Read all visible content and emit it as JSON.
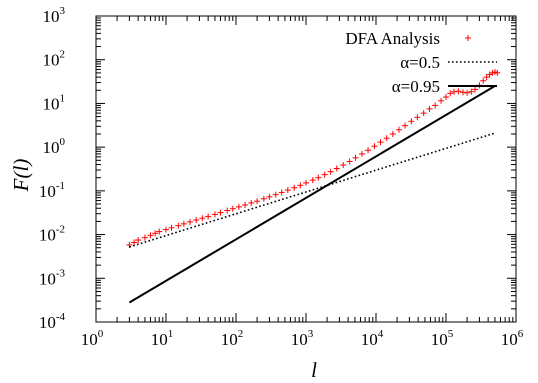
{
  "chart_data": {
    "type": "scatter",
    "title": "",
    "xlabel": "l",
    "ylabel": "F(l)",
    "x_scale": "log",
    "y_scale": "log",
    "xlim": [
      1,
      1000000
    ],
    "ylim": [
      0.0001,
      1000
    ],
    "grid": false,
    "legend_position": "top-right",
    "x_ticks": [
      {
        "base": "10",
        "exp": "0",
        "value": 1
      },
      {
        "base": "10",
        "exp": "1",
        "value": 10
      },
      {
        "base": "10",
        "exp": "2",
        "value": 100
      },
      {
        "base": "10",
        "exp": "3",
        "value": 1000
      },
      {
        "base": "10",
        "exp": "4",
        "value": 10000
      },
      {
        "base": "10",
        "exp": "5",
        "value": 100000
      },
      {
        "base": "10",
        "exp": "6",
        "value": 1000000
      }
    ],
    "y_ticks": [
      {
        "base": "10",
        "exp": "-4",
        "value": 0.0001
      },
      {
        "base": "10",
        "exp": "-3",
        "value": 0.001
      },
      {
        "base": "10",
        "exp": "-2",
        "value": 0.01
      },
      {
        "base": "10",
        "exp": "-1",
        "value": 0.1
      },
      {
        "base": "10",
        "exp": "0",
        "value": 1
      },
      {
        "base": "10",
        "exp": "1",
        "value": 10
      },
      {
        "base": "10",
        "exp": "2",
        "value": 100
      },
      {
        "base": "10",
        "exp": "3",
        "value": 1000
      }
    ],
    "series": [
      {
        "name": "DFA Analysis",
        "kind": "points",
        "marker": "plus",
        "color": "#ff0000",
        "points": [
          [
            3,
            0.0058
          ],
          [
            3.5,
            0.0066
          ],
          [
            4,
            0.0075
          ],
          [
            5,
            0.0085
          ],
          [
            6,
            0.0096
          ],
          [
            7,
            0.0107
          ],
          [
            8,
            0.0117
          ],
          [
            10,
            0.013
          ],
          [
            12,
            0.0143
          ],
          [
            15,
            0.016
          ],
          [
            18,
            0.0176
          ],
          [
            22,
            0.0195
          ],
          [
            27,
            0.0215
          ],
          [
            33,
            0.0237
          ],
          [
            40,
            0.026
          ],
          [
            50,
            0.0289
          ],
          [
            60,
            0.0318
          ],
          [
            75,
            0.0355
          ],
          [
            90,
            0.039
          ],
          [
            110,
            0.043
          ],
          [
            135,
            0.0475
          ],
          [
            165,
            0.053
          ],
          [
            200,
            0.058
          ],
          [
            250,
            0.066
          ],
          [
            300,
            0.073
          ],
          [
            370,
            0.082
          ],
          [
            450,
            0.092
          ],
          [
            550,
            0.104
          ],
          [
            680,
            0.118
          ],
          [
            830,
            0.134
          ],
          [
            1000,
            0.152
          ],
          [
            1250,
            0.176
          ],
          [
            1500,
            0.2
          ],
          [
            1850,
            0.235
          ],
          [
            2250,
            0.275
          ],
          [
            2750,
            0.325
          ],
          [
            3400,
            0.39
          ],
          [
            4200,
            0.47
          ],
          [
            5100,
            0.57
          ],
          [
            6300,
            0.7
          ],
          [
            7700,
            0.85
          ],
          [
            9500,
            1.05
          ],
          [
            11600,
            1.3
          ],
          [
            14200,
            1.6
          ],
          [
            17400,
            2.0
          ],
          [
            21300,
            2.5
          ],
          [
            26000,
            3.1
          ],
          [
            32000,
            3.9
          ],
          [
            39000,
            4.8
          ],
          [
            48000,
            6.0
          ],
          [
            58000,
            7.5
          ],
          [
            70000,
            9.0
          ],
          [
            85000,
            11.5
          ],
          [
            100000,
            14
          ],
          [
            115000,
            17
          ],
          [
            130000,
            18.5
          ],
          [
            150000,
            19
          ],
          [
            175000,
            18
          ],
          [
            200000,
            17.5
          ],
          [
            230000,
            18.5
          ],
          [
            260000,
            21
          ],
          [
            300000,
            26
          ],
          [
            340000,
            33
          ],
          [
            380000,
            40
          ],
          [
            420000,
            46
          ],
          [
            460000,
            50
          ],
          [
            500000,
            52
          ],
          [
            540000,
            50
          ]
        ]
      },
      {
        "name": "α=0.5",
        "kind": "line",
        "style": "dotted",
        "color": "#000000",
        "points": [
          [
            3,
            0.0052
          ],
          [
            500000,
            2.1
          ]
        ]
      },
      {
        "name": "α=0.95",
        "kind": "line",
        "style": "solid",
        "color": "#000000",
        "points": [
          [
            3,
            0.00028
          ],
          [
            500000,
            25
          ]
        ]
      }
    ]
  }
}
